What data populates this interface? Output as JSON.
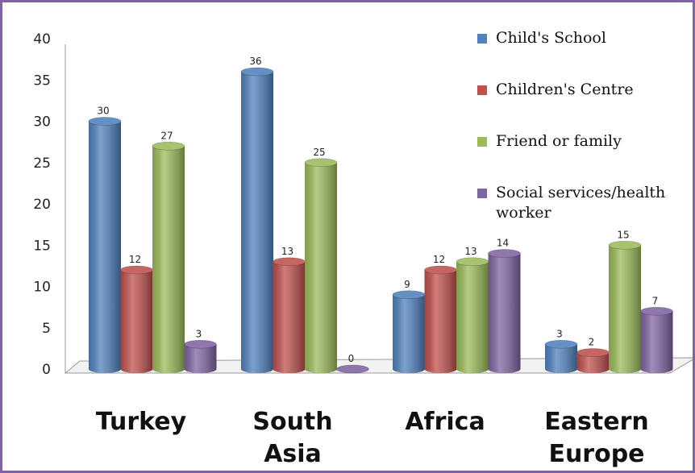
{
  "chart_data": {
    "type": "bar",
    "categories": [
      [
        "Turkey"
      ],
      [
        "South",
        "Asia"
      ],
      [
        "Africa"
      ],
      [
        "Eastern",
        "Europe"
      ]
    ],
    "series": [
      {
        "name": "Child's School",
        "values": [
          30,
          36,
          9,
          3
        ],
        "color": "#4f81bd"
      },
      {
        "name": "Children's Centre",
        "values": [
          12,
          13,
          12,
          2
        ],
        "color": "#c0504d"
      },
      {
        "name": "Friend or family",
        "values": [
          27,
          25,
          13,
          15
        ],
        "color": "#9bbb59"
      },
      {
        "name": "Social services/health worker",
        "legend_lines": [
          "Social services/health",
          "worker"
        ],
        "values": [
          3,
          0,
          14,
          7
        ],
        "color": "#8064a2"
      }
    ],
    "yticks": [
      0,
      5,
      10,
      15,
      20,
      25,
      30,
      35,
      40
    ],
    "ylim": [
      0,
      40
    ],
    "legend_position": "top-right",
    "style": "3d-cylinder"
  }
}
